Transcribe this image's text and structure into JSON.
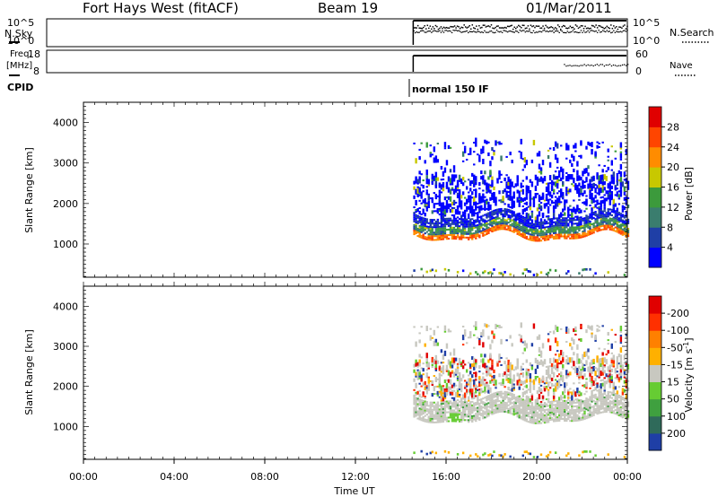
{
  "header": {
    "title": "Fort Hays West (fitACF)",
    "beam": "Beam 19",
    "date": "01/Mar/2011"
  },
  "status_panels": {
    "nsky_label": "N.Sky",
    "nsky_ticks": [
      "10^5",
      "10^0"
    ],
    "nsearch_ticks": [
      "10^5",
      "10^0"
    ],
    "nsearch_label": "N.Search",
    "freq_label_1": "Freq.",
    "freq_label_2": "[MHz]",
    "freq_ticks": [
      "18",
      "8"
    ],
    "nave_ticks": [
      "60",
      "0"
    ],
    "nave_label": "Nave",
    "cpid_label": "CPID",
    "cpid_value": "normal 150 IF"
  },
  "chart_data": [
    {
      "type": "heatmap",
      "title": "",
      "xlabel": "",
      "ylabel": "Slant Range [km]",
      "x_range_hours": [
        0,
        24
      ],
      "ylim": [
        180,
        4500
      ],
      "yticks": [
        "1000",
        "2000",
        "3000",
        "4000"
      ],
      "data_start_ut": 14.55,
      "colorbar": {
        "label": "Power [dB]",
        "ticks": [
          "4",
          "8",
          "12",
          "16",
          "20",
          "24",
          "28"
        ],
        "colors": [
          "#0000ff",
          "#1f3fa6",
          "#3a7d6e",
          "#3c9a3c",
          "#c8c800",
          "#ff8c00",
          "#ff4500",
          "#e00000"
        ]
      },
      "features": {
        "ground_scatter_band_km": [
          1200,
          1700
        ],
        "scattered_echoes_km": [
          1800,
          3500
        ],
        "near_range_echoes_km": [
          200,
          350
        ]
      }
    },
    {
      "type": "heatmap",
      "title": "",
      "xlabel": "Time UT",
      "ylabel": "Slant Range [km]",
      "x_range_hours": [
        0,
        24
      ],
      "xticks": [
        "00:00",
        "04:00",
        "08:00",
        "12:00",
        "16:00",
        "20:00",
        "00:00"
      ],
      "ylim": [
        180,
        4500
      ],
      "yticks": [
        "1000",
        "2000",
        "3000",
        "4000"
      ],
      "data_start_ut": 14.55,
      "colorbar": {
        "label": "Velocity [m s",
        "label_exp": "-1",
        "label_end": "]",
        "ticks": [
          "200",
          "100",
          "50",
          "15",
          "-15",
          "-50",
          "-100",
          "-200"
        ],
        "colors": [
          "#1f3fa6",
          "#2f6a5a",
          "#3fa03f",
          "#66cc33",
          "#c8c8c0",
          "#ffb000",
          "#ff8000",
          "#ff3000",
          "#e00000"
        ]
      },
      "features": {
        "ground_scatter_band_km": [
          1200,
          1700
        ],
        "scattered_echoes_km": [
          1800,
          3500
        ],
        "near_range_echoes_km": [
          200,
          350
        ]
      }
    }
  ]
}
